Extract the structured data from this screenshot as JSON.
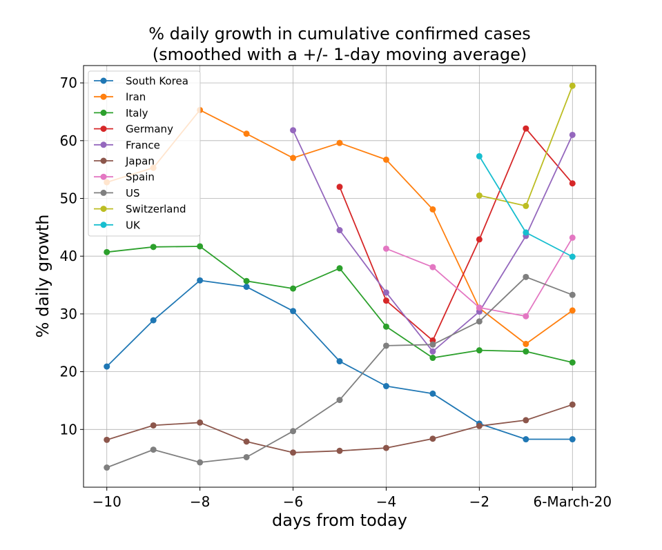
{
  "chart_data": {
    "type": "line",
    "title": "% daily growth in cumulative confirmed cases",
    "subtitle": "(smoothed with a +/- 1-day moving average)",
    "xlabel": "days from today",
    "ylabel": "% daily growth",
    "xlim": [
      -10.5,
      0.5
    ],
    "ylim": [
      0,
      73
    ],
    "xticks": [
      {
        "value": -10,
        "label": "−10"
      },
      {
        "value": -8,
        "label": "−8"
      },
      {
        "value": -6,
        "label": "−6"
      },
      {
        "value": -4,
        "label": "−4"
      },
      {
        "value": -2,
        "label": "−2"
      },
      {
        "value": 0,
        "label": "6-March-20"
      }
    ],
    "yticks": [
      {
        "value": 10,
        "label": "10"
      },
      {
        "value": 20,
        "label": "20"
      },
      {
        "value": 30,
        "label": "30"
      },
      {
        "value": 40,
        "label": "40"
      },
      {
        "value": 50,
        "label": "50"
      },
      {
        "value": 60,
        "label": "60"
      },
      {
        "value": 70,
        "label": "70"
      }
    ],
    "grid": true,
    "legend_position": "top-left",
    "series": [
      {
        "name": "South Korea",
        "color": "#1f77b4",
        "x": [
          -10,
          -9,
          -8,
          -7,
          -6,
          -5,
          -4,
          -3,
          -2,
          -1,
          0
        ],
        "y": [
          20.9,
          28.9,
          35.8,
          34.7,
          30.5,
          21.8,
          17.5,
          16.2,
          11.0,
          8.3,
          8.3
        ]
      },
      {
        "name": "Iran",
        "color": "#ff7f0e",
        "x": [
          -10,
          -9,
          -8,
          -7,
          -6,
          -5,
          -4,
          -3,
          -2,
          -1,
          0
        ],
        "y": [
          52.8,
          55.3,
          65.3,
          61.2,
          57.0,
          59.6,
          56.7,
          48.1,
          31.0,
          24.8,
          30.6
        ]
      },
      {
        "name": "Italy",
        "color": "#2ca02c",
        "x": [
          -10,
          -9,
          -8,
          -7,
          -6,
          -5,
          -4,
          -3,
          -2,
          -1,
          0
        ],
        "y": [
          40.7,
          41.6,
          41.7,
          35.7,
          34.4,
          37.9,
          27.8,
          22.4,
          23.7,
          23.5,
          21.6
        ]
      },
      {
        "name": "Germany",
        "color": "#d62728",
        "x": [
          -5,
          -4,
          -3,
          -2,
          -1,
          0
        ],
        "y": [
          52.0,
          32.3,
          25.4,
          42.9,
          62.1,
          52.6
        ]
      },
      {
        "name": "France",
        "color": "#9467bd",
        "x": [
          -6,
          -5,
          -4,
          -3,
          -2,
          -1,
          0
        ],
        "y": [
          61.8,
          44.5,
          33.7,
          23.5,
          30.4,
          43.5,
          61.0
        ]
      },
      {
        "name": "Japan",
        "color": "#8c564b",
        "x": [
          -10,
          -9,
          -8,
          -7,
          -6,
          -5,
          -4,
          -3,
          -2,
          -1,
          0
        ],
        "y": [
          8.2,
          10.7,
          11.2,
          7.9,
          6.0,
          6.3,
          6.8,
          8.4,
          10.6,
          11.6,
          14.3
        ]
      },
      {
        "name": "Spain",
        "color": "#e377c2",
        "x": [
          -4,
          -3,
          -2,
          -1,
          0
        ],
        "y": [
          41.3,
          38.1,
          31.1,
          29.6,
          43.2
        ]
      },
      {
        "name": "US",
        "color": "#7f7f7f",
        "x": [
          -10,
          -9,
          -8,
          -7,
          -6,
          -5,
          -4,
          -3,
          -2,
          -1,
          0
        ],
        "y": [
          3.4,
          6.5,
          4.3,
          5.2,
          9.7,
          15.1,
          24.5,
          24.7,
          28.7,
          36.4,
          33.3
        ]
      },
      {
        "name": "Switzerland",
        "color": "#bcbd22",
        "x": [
          -2,
          -1,
          0
        ],
        "y": [
          50.5,
          48.7,
          69.5
        ]
      },
      {
        "name": "UK",
        "color": "#17becf",
        "x": [
          -2,
          -1,
          0
        ],
        "y": [
          57.3,
          44.1,
          39.9
        ]
      }
    ]
  }
}
